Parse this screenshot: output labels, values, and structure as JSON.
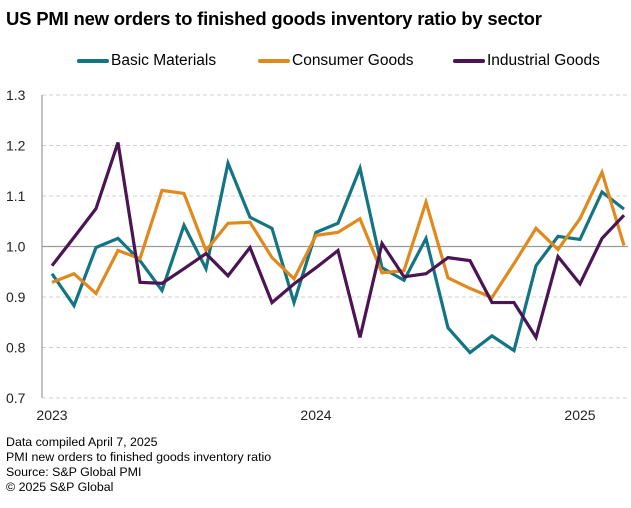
{
  "chart_data": {
    "type": "line",
    "title": "US PMI new orders to finished goods inventory ratio by sector",
    "xlabel": "",
    "ylabel": "",
    "ylim": [
      0.7,
      1.3
    ],
    "yticks": [
      "1.3",
      "1.2",
      "1.1",
      "1.0",
      "0.9",
      "0.8",
      "0.7"
    ],
    "ytick_values": [
      1.3,
      1.2,
      1.1,
      1.0,
      0.9,
      0.8,
      0.7
    ],
    "xtick_labels": [
      {
        "label": "2023",
        "index": 0
      },
      {
        "label": "2024",
        "index": 12
      },
      {
        "label": "2025",
        "index": 24
      }
    ],
    "x": [
      "2023-01",
      "2023-02",
      "2023-03",
      "2023-04",
      "2023-05",
      "2023-06",
      "2023-07",
      "2023-08",
      "2023-09",
      "2023-10",
      "2023-11",
      "2023-12",
      "2024-01",
      "2024-02",
      "2024-03",
      "2024-04",
      "2024-05",
      "2024-06",
      "2024-07",
      "2024-08",
      "2024-09",
      "2024-10",
      "2024-11",
      "2024-12",
      "2025-01",
      "2025-02",
      "2025-03"
    ],
    "reference_line": 1.0,
    "grid": true,
    "legend_position": "top",
    "series": [
      {
        "name": "Basic Materials",
        "color": "#137584",
        "values": [
          0.946,
          0.883,
          0.998,
          1.016,
          0.972,
          0.913,
          1.042,
          0.956,
          1.165,
          1.058,
          1.036,
          0.889,
          1.028,
          1.046,
          1.155,
          0.958,
          0.933,
          1.016,
          0.839,
          0.79,
          0.823,
          0.794,
          0.962,
          1.02,
          1.014,
          1.108,
          1.074
        ]
      },
      {
        "name": "Consumer Goods",
        "color": "#E08A1E",
        "values": [
          0.929,
          0.946,
          0.907,
          0.992,
          0.976,
          1.111,
          1.105,
          0.992,
          1.046,
          1.048,
          0.978,
          0.936,
          1.022,
          1.028,
          1.055,
          0.948,
          0.952,
          1.088,
          0.938,
          0.917,
          0.899,
          0.966,
          1.036,
          0.994,
          1.055,
          1.147,
          1.002
        ]
      },
      {
        "name": "Industrial Goods",
        "color": "#4B1452",
        "values": [
          0.962,
          1.018,
          1.075,
          1.206,
          0.929,
          0.927,
          0.956,
          0.986,
          0.942,
          0.998,
          0.889,
          0.926,
          0.958,
          0.992,
          0.82,
          1.006,
          0.94,
          0.946,
          0.978,
          0.972,
          0.889,
          0.889,
          0.82,
          0.98,
          0.926,
          1.016,
          1.062
        ]
      }
    ]
  },
  "footer": {
    "line1": "Data compiled April 7, 2025",
    "line2": "PMI new orders to finished goods inventory ratio",
    "line3": "Source: S&P Global PMI",
    "line4": "© 2025 S&P Global"
  }
}
